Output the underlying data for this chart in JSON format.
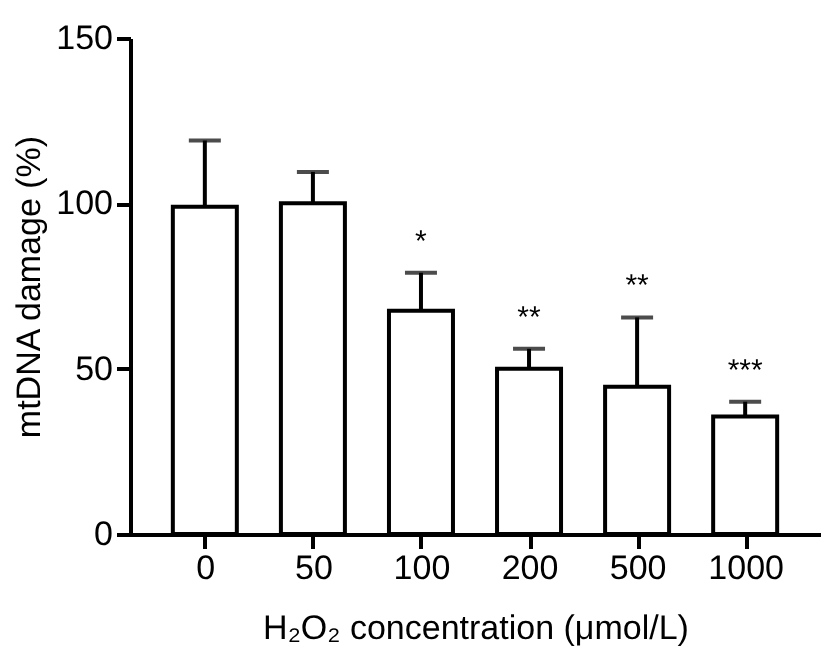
{
  "chart_data": {
    "type": "bar",
    "xlabel": "H₂O₂ concentration (μmol/L)",
    "ylabel": "mtDNA damage (%)",
    "categories": [
      "0",
      "50",
      "100",
      "200",
      "500",
      "1000"
    ],
    "values": [
      99,
      100,
      67.5,
      50,
      44.5,
      35.5
    ],
    "errors": [
      [
        99,
        119
      ],
      [
        100,
        109.5
      ],
      [
        67.5,
        79
      ],
      [
        50,
        56
      ],
      [
        44.5,
        65.5
      ],
      [
        35.5,
        40
      ]
    ],
    "color": "#ffffff",
    "ylim": [
      0,
      150
    ],
    "yticks": [
      0,
      50,
      100,
      150
    ],
    "grid": false,
    "annotations": [
      "*",
      "**",
      "**",
      "***"
    ]
  }
}
